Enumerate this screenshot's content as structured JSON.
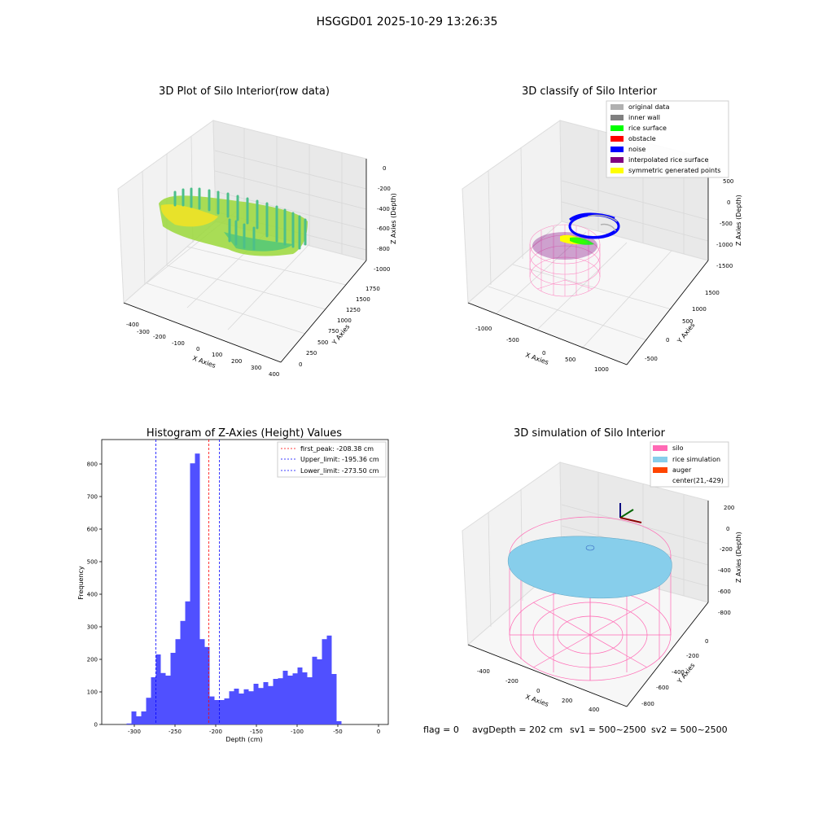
{
  "suptitle": "HSGGD01 2025-10-29 13:26:35",
  "footer": {
    "flag": "flag = 0",
    "avg_depth": "avgDepth = 202 cm",
    "sv1": "sv1 = 500~2500",
    "sv2": "sv2 = 500~2500"
  },
  "plot_raw": {
    "title": "3D Plot of Silo Interior(row data)",
    "xlabel": "X Axies",
    "ylabel": "Y Axies",
    "zlabel": "Z Axies (Depth)",
    "xticks": [
      "-400",
      "-300",
      "-200",
      "-100",
      "0",
      "100",
      "200",
      "300",
      "400"
    ],
    "yticks": [
      "0",
      "250",
      "500",
      "750",
      "1000",
      "1250",
      "1500",
      "1750"
    ],
    "zticks": [
      "0",
      "-200",
      "-400",
      "-600",
      "-800",
      "-1000"
    ]
  },
  "plot_classify": {
    "title": "3D classify of Silo Interior",
    "xlabel": "X Axies",
    "ylabel": "Y Axies",
    "zlabel": "Z Axies (Depth)",
    "xticks": [
      "-1000",
      "-500",
      "0",
      "500",
      "1000"
    ],
    "yticks": [
      "-500",
      "0",
      "500",
      "1000",
      "1500"
    ],
    "zticks": [
      "500",
      "0",
      "-500",
      "-1000",
      "-1500"
    ],
    "legend": [
      {
        "label": "original data",
        "color": "#b0b0b0"
      },
      {
        "label": "inner wall",
        "color": "#808080"
      },
      {
        "label": "rice surface",
        "color": "#00ff00"
      },
      {
        "label": "obstacle",
        "color": "#ff0000"
      },
      {
        "label": "noise",
        "color": "#0000ff"
      },
      {
        "label": "interpolated rice surface",
        "color": "#800080"
      },
      {
        "label": "symmetric generated points",
        "color": "#ffff00"
      }
    ]
  },
  "plot_sim": {
    "title": "3D simulation of Silo Interior",
    "xlabel": "X Axies",
    "ylabel": "Y Axies",
    "zlabel": "Z Axies (Depth)",
    "xticks": [
      "-400",
      "-200",
      "0",
      "200",
      "400"
    ],
    "yticks": [
      "0",
      "-200",
      "-400",
      "-600",
      "-800"
    ],
    "zticks": [
      "200",
      "0",
      "-200",
      "-400",
      "-600",
      "-800"
    ],
    "legend": [
      {
        "label": "silo",
        "color": "#ff69b4"
      },
      {
        "label": "rice simulation",
        "color": "#87ceeb"
      },
      {
        "label": "auger",
        "color": "#ff4500"
      },
      {
        "label": "center(21,-429)",
        "color": ""
      }
    ]
  },
  "chart_data": {
    "type": "bar",
    "title": "Histogram of Z-Axies (Height) Values",
    "xlabel": "Depth (cm)",
    "ylabel": "Frequency",
    "xlim": [
      -340,
      12
    ],
    "ylim": [
      0,
      875
    ],
    "xticks": [
      -300,
      -250,
      -200,
      -150,
      -100,
      -50,
      0
    ],
    "yticks": [
      0,
      100,
      200,
      300,
      400,
      500,
      600,
      700,
      800
    ],
    "bar_color": "#5050ff",
    "bin_start": -309.5,
    "bin_width": 6.0,
    "values": [
      3,
      40,
      25,
      40,
      82,
      145,
      215,
      158,
      150,
      220,
      262,
      318,
      378,
      802,
      832,
      262,
      238,
      86,
      75,
      75,
      80,
      102,
      110,
      95,
      108,
      102,
      125,
      112,
      130,
      118,
      140,
      142,
      165,
      150,
      157,
      175,
      160,
      145,
      208,
      200,
      262,
      273,
      155,
      10
    ],
    "vlines": [
      {
        "label": "first_peak: -208.38 cm",
        "x": -208.38,
        "color": "#ff0000"
      },
      {
        "label": "Upper_limit: -195.36 cm",
        "x": -195.36,
        "color": "#0000ff"
      },
      {
        "label": "Lower_limit: -273.50 cm",
        "x": -273.5,
        "color": "#0000ff"
      }
    ],
    "legend_position": "top-right"
  }
}
